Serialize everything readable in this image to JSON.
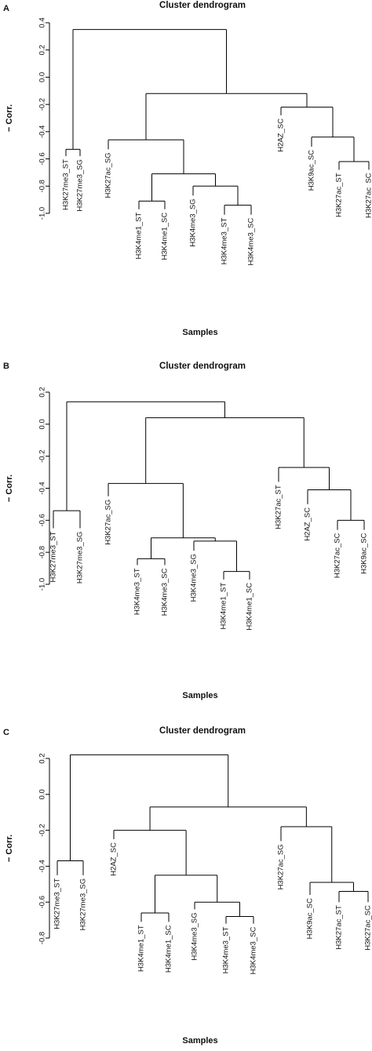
{
  "chart_data": [
    {
      "type": "dendrogram",
      "panel": "A",
      "title": "Cluster dendrogram",
      "xlabel": "Samples",
      "ylabel": "− Corr.",
      "ylim": [
        -1.0,
        0.4
      ],
      "yticks": [
        0.4,
        0.2,
        0.0,
        -0.2,
        -0.4,
        -0.6,
        -0.8,
        -1.0
      ],
      "leaves": [
        {
          "label": "H3K27me3_ST",
          "h": -0.58
        },
        {
          "label": "H3K27me3_SG",
          "h": -0.58
        },
        {
          "label": "H3K27ac_SG",
          "h": -0.53
        },
        {
          "label": "H3K4me1_ST",
          "h": -0.97
        },
        {
          "label": "H3K4me1_SC",
          "h": -0.97
        },
        {
          "label": "H3K4me3_SG",
          "h": -0.87
        },
        {
          "label": "H3K4me3_ST",
          "h": -1.01
        },
        {
          "label": "H3K4me3_SC",
          "h": -1.01
        },
        {
          "label": "H2AZ_SC",
          "h": -0.28
        },
        {
          "label": "H3K9ac_SC",
          "h": -0.51
        },
        {
          "label": "H3K27ac_ST",
          "h": -0.68
        },
        {
          "label": "H3K27ac_SC",
          "h": -0.68
        }
      ],
      "merges": [
        {
          "a": "H3K27me3_ST",
          "b": "H3K27me3_SG",
          "h": -0.53
        },
        {
          "a": "H3K4me1_ST",
          "b": "H3K4me1_SC",
          "h": -0.91
        },
        {
          "a": "H3K4me3_ST",
          "b": "H3K4me3_SC",
          "h": -0.94
        },
        {
          "a": "H3K4me3_SG",
          "b": "m3",
          "h": -0.8
        },
        {
          "a": "m2",
          "b": "m4",
          "h": -0.71
        },
        {
          "a": "H3K27ac_SG",
          "b": "m5",
          "h": -0.46
        },
        {
          "a": "H3K27ac_ST",
          "b": "H3K27ac_SC",
          "h": -0.62
        },
        {
          "a": "H3K9ac_SC",
          "b": "m7",
          "h": -0.44
        },
        {
          "a": "H2AZ_SC",
          "b": "m8",
          "h": -0.22
        },
        {
          "a": "m6",
          "b": "m9",
          "h": -0.12
        },
        {
          "a": "m1",
          "b": "m10",
          "h": 0.35
        }
      ]
    },
    {
      "type": "dendrogram",
      "panel": "B",
      "title": "Cluster dendrogram",
      "xlabel": "Samples",
      "ylabel": "− Corr.",
      "ylim": [
        -1.0,
        0.2
      ],
      "yticks": [
        0.2,
        0.0,
        -0.2,
        -0.4,
        -0.6,
        -0.8,
        -1.0
      ],
      "leaves": [
        {
          "label": "H3K27me3_ST",
          "h": -0.65
        },
        {
          "label": "H3K27me3_SG",
          "h": -0.65
        },
        {
          "label": "H3K27ac_SG",
          "h": -0.45
        },
        {
          "label": "H3K4me3_ST",
          "h": -0.88
        },
        {
          "label": "H3K4me3_SC",
          "h": -0.88
        },
        {
          "label": "H3K4me3_SG",
          "h": -0.79
        },
        {
          "label": "H3K4me1_ST",
          "h": -0.97
        },
        {
          "label": "H3K4me1_SC",
          "h": -0.97
        },
        {
          "label": "H3K27ac_ST",
          "h": -0.36
        },
        {
          "label": "H2AZ_SC",
          "h": -0.5
        },
        {
          "label": "H3K27ac_SC",
          "h": -0.66
        },
        {
          "label": "H3K9ac_SC",
          "h": -0.66
        }
      ],
      "merges": [
        {
          "a": "H3K27me3_ST",
          "b": "H3K27me3_SG",
          "h": -0.54
        },
        {
          "a": "H3K4me3_ST",
          "b": "H3K4me3_SC",
          "h": -0.84
        },
        {
          "a": "H3K4me1_ST",
          "b": "H3K4me1_SC",
          "h": -0.92
        },
        {
          "a": "H3K4me3_SG",
          "b": "m3",
          "h": -0.73
        },
        {
          "a": "m2",
          "b": "m4",
          "h": -0.71
        },
        {
          "a": "H3K27ac_SG",
          "b": "m5",
          "h": -0.37
        },
        {
          "a": "H3K27ac_SC",
          "b": "H3K9ac_SC",
          "h": -0.6
        },
        {
          "a": "H2AZ_SC",
          "b": "m7",
          "h": -0.41
        },
        {
          "a": "H3K27ac_ST",
          "b": "m8",
          "h": -0.27
        },
        {
          "a": "m6",
          "b": "m9",
          "h": 0.04
        },
        {
          "a": "m1",
          "b": "m10",
          "h": 0.14
        }
      ]
    },
    {
      "type": "dendrogram",
      "panel": "C",
      "title": "Cluster dendrogram",
      "xlabel": "Samples",
      "ylabel": "− Corr.",
      "ylim": [
        -0.8,
        0.2
      ],
      "yticks": [
        0.2,
        0.0,
        -0.2,
        -0.4,
        -0.6,
        -0.8
      ],
      "leaves": [
        {
          "label": "H3K27me3_ST",
          "h": -0.45
        },
        {
          "label": "H3K27me3_SG",
          "h": -0.45
        },
        {
          "label": "H2AZ_SC",
          "h": -0.25
        },
        {
          "label": "H3K4me1_ST",
          "h": -0.71
        },
        {
          "label": "H3K4me1_SC",
          "h": -0.71
        },
        {
          "label": "H3K4me3_SG",
          "h": -0.64
        },
        {
          "label": "H3K4me3_ST",
          "h": -0.72
        },
        {
          "label": "H3K4me3_SC",
          "h": -0.72
        },
        {
          "label": "H3K27ac_SG",
          "h": -0.26
        },
        {
          "label": "H3K9ac_SC",
          "h": -0.56
        },
        {
          "label": "H3K27ac_ST",
          "h": -0.6
        },
        {
          "label": "H3K27ac_SC",
          "h": -0.6
        }
      ],
      "merges": [
        {
          "a": "H3K27me3_ST",
          "b": "H3K27me3_SG",
          "h": -0.37
        },
        {
          "a": "H3K4me1_ST",
          "b": "H3K4me1_SC",
          "h": -0.66
        },
        {
          "a": "H3K4me3_ST",
          "b": "H3K4me3_SC",
          "h": -0.68
        },
        {
          "a": "H3K4me3_SG",
          "b": "m3",
          "h": -0.6
        },
        {
          "a": "m2",
          "b": "m4",
          "h": -0.45
        },
        {
          "a": "H2AZ_SC",
          "b": "m5",
          "h": -0.2
        },
        {
          "a": "H3K27ac_ST",
          "b": "H3K27ac_SC",
          "h": -0.54
        },
        {
          "a": "H3K9ac_SC",
          "b": "m7",
          "h": -0.49
        },
        {
          "a": "H3K27ac_SG",
          "b": "m8",
          "h": -0.18
        },
        {
          "a": "m6",
          "b": "m9",
          "h": -0.07
        },
        {
          "a": "m1",
          "b": "m10",
          "h": 0.22
        }
      ]
    }
  ]
}
